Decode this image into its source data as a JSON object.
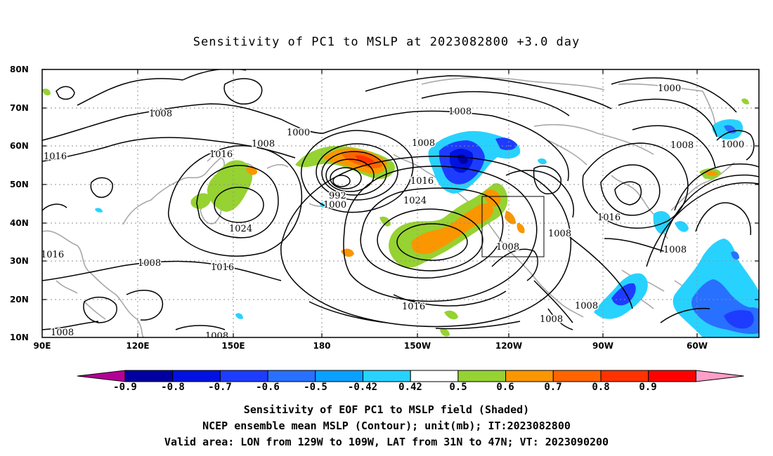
{
  "title": "Sensitivity of PC1 to MSLP at 2023082800 +3.0 day",
  "lat_labels": [
    "80N",
    "70N",
    "60N",
    "50N",
    "40N",
    "30N",
    "20N",
    "10N"
  ],
  "lon_labels": [
    "90E",
    "120E",
    "150E",
    "180",
    "150W",
    "120W",
    "90W",
    "60W"
  ],
  "colorbar": {
    "colors": [
      "#b40096",
      "#0000a0",
      "#0012e0",
      "#1e3cff",
      "#2870ff",
      "#0aa0ff",
      "#28d2ff",
      "#ffffff",
      "#96d232",
      "#fa9600",
      "#ff6400",
      "#ff3200",
      "#ff0000",
      "#ff9ec8"
    ],
    "labels": [
      "-0.9",
      "-0.8",
      "-0.7",
      "-0.6",
      "-0.5",
      "-0.42",
      "0.42",
      "0.5",
      "0.6",
      "0.7",
      "0.8",
      "0.9"
    ]
  },
  "contour_labels": [
    {
      "text": "1008"
    },
    {
      "text": "1000"
    },
    {
      "text": "1016"
    },
    {
      "text": "1008"
    },
    {
      "text": "1016"
    },
    {
      "text": "992"
    },
    {
      "text": "1000"
    },
    {
      "text": "1024"
    },
    {
      "text": "1016"
    },
    {
      "text": "1008"
    },
    {
      "text": "1008"
    },
    {
      "text": "1016"
    },
    {
      "text": "1024"
    },
    {
      "text": "1016"
    },
    {
      "text": "1008"
    },
    {
      "text": "1008"
    },
    {
      "text": "1008"
    },
    {
      "text": "1008"
    },
    {
      "text": "1016"
    },
    {
      "text": "1000"
    },
    {
      "text": "1008"
    },
    {
      "text": "1008"
    },
    {
      "text": "1016"
    },
    {
      "text": "1000"
    },
    {
      "text": "1008"
    },
    {
      "text": "1008"
    },
    {
      "text": "1016"
    },
    {
      "text": "1008"
    }
  ],
  "captions": [
    "Sensitivity of EOF PC1 to MSLP field (Shaded)",
    "NCEP ensemble mean MSLP (Contour); unit(mb); IT:2023082800",
    "Valid area: LON from 129W to 109W, LAT from 31N to 47N; VT: 2023090200"
  ]
}
